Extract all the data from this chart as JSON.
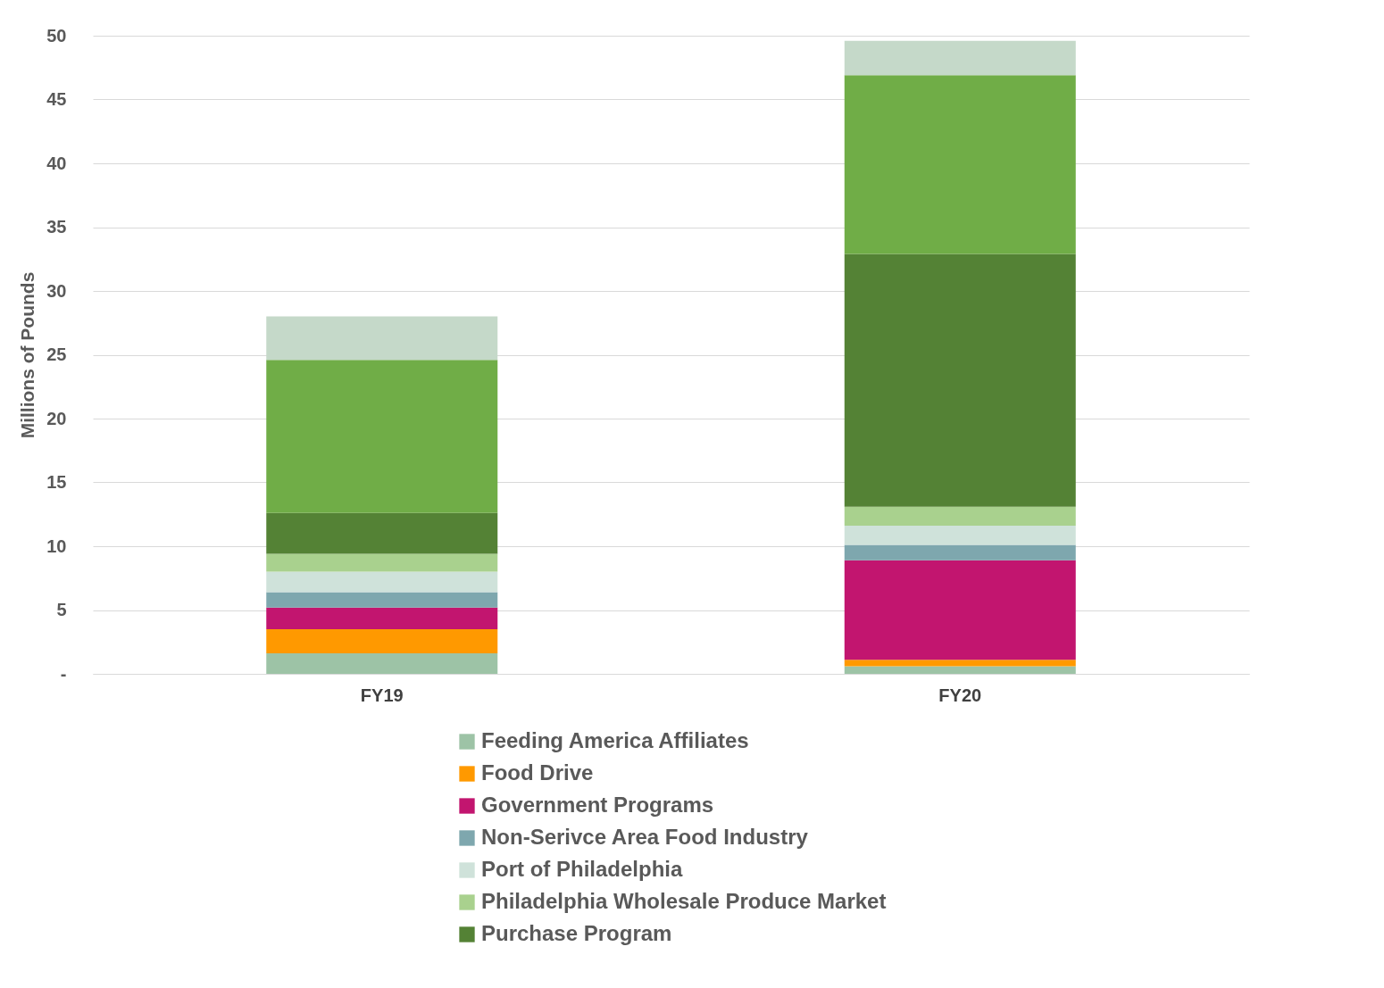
{
  "chart_data": {
    "type": "bar",
    "stacked": true,
    "ylabel": "Millions of Pounds",
    "categories": [
      "FY19",
      "FY20"
    ],
    "ylim": [
      0,
      50
    ],
    "yticks": [
      {
        "value": 0,
        "label": "-"
      },
      5,
      10,
      15,
      20,
      25,
      30,
      35,
      40,
      45,
      50
    ],
    "grid": "y",
    "legend": "bottom",
    "series": [
      {
        "name": "Feeding America Affiliates",
        "color": "#9dc3a6",
        "values": [
          1.6,
          0.6
        ]
      },
      {
        "name": "Food Drive",
        "color": "#ff9900",
        "values": [
          1.9,
          0.5
        ]
      },
      {
        "name": "Government Programs",
        "color": "#c2156f",
        "values": [
          1.7,
          7.8
        ]
      },
      {
        "name": "Non-Serivce Area Food Industry",
        "color": "#7ea7ae",
        "values": [
          1.2,
          1.2
        ]
      },
      {
        "name": "Port of Philadelphia",
        "color": "#cfe2da",
        "values": [
          1.6,
          1.5
        ]
      },
      {
        "name": "Philadelphia Wholesale Produce Market",
        "color": "#a9d18e",
        "values": [
          1.4,
          1.5
        ]
      },
      {
        "name": "Purchase Program",
        "color": "#548235",
        "values": [
          3.2,
          19.8
        ]
      },
      {
        "color": "#70ad47",
        "values": [
          12.0,
          14.0
        ]
      },
      {
        "color": "#c5d9c9",
        "values": [
          3.4,
          2.7
        ]
      }
    ]
  }
}
